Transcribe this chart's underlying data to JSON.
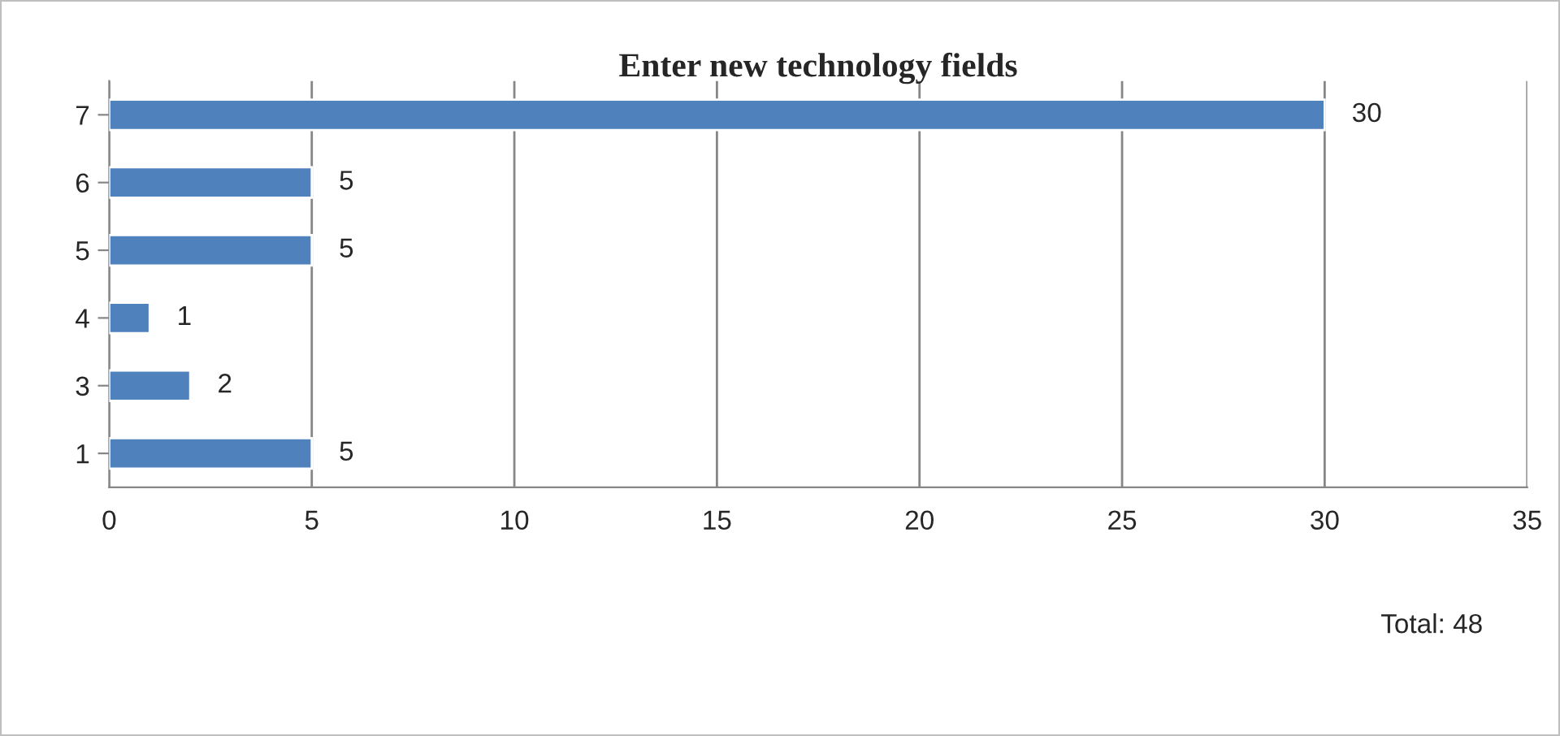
{
  "chart_data": {
    "type": "bar",
    "orientation": "horizontal",
    "title": "Enter new technology fields",
    "categories": [
      "7",
      "6",
      "5",
      "4",
      "3",
      "1"
    ],
    "values": [
      30,
      5,
      5,
      1,
      2,
      5
    ],
    "color": "#4f81bd",
    "xlim": [
      0,
      35
    ],
    "xticks": [
      0,
      5,
      10,
      15,
      20,
      25,
      30,
      35
    ],
    "grid": "x",
    "data_labels": true,
    "legend": false,
    "annotations": [
      "Total: 48"
    ]
  }
}
